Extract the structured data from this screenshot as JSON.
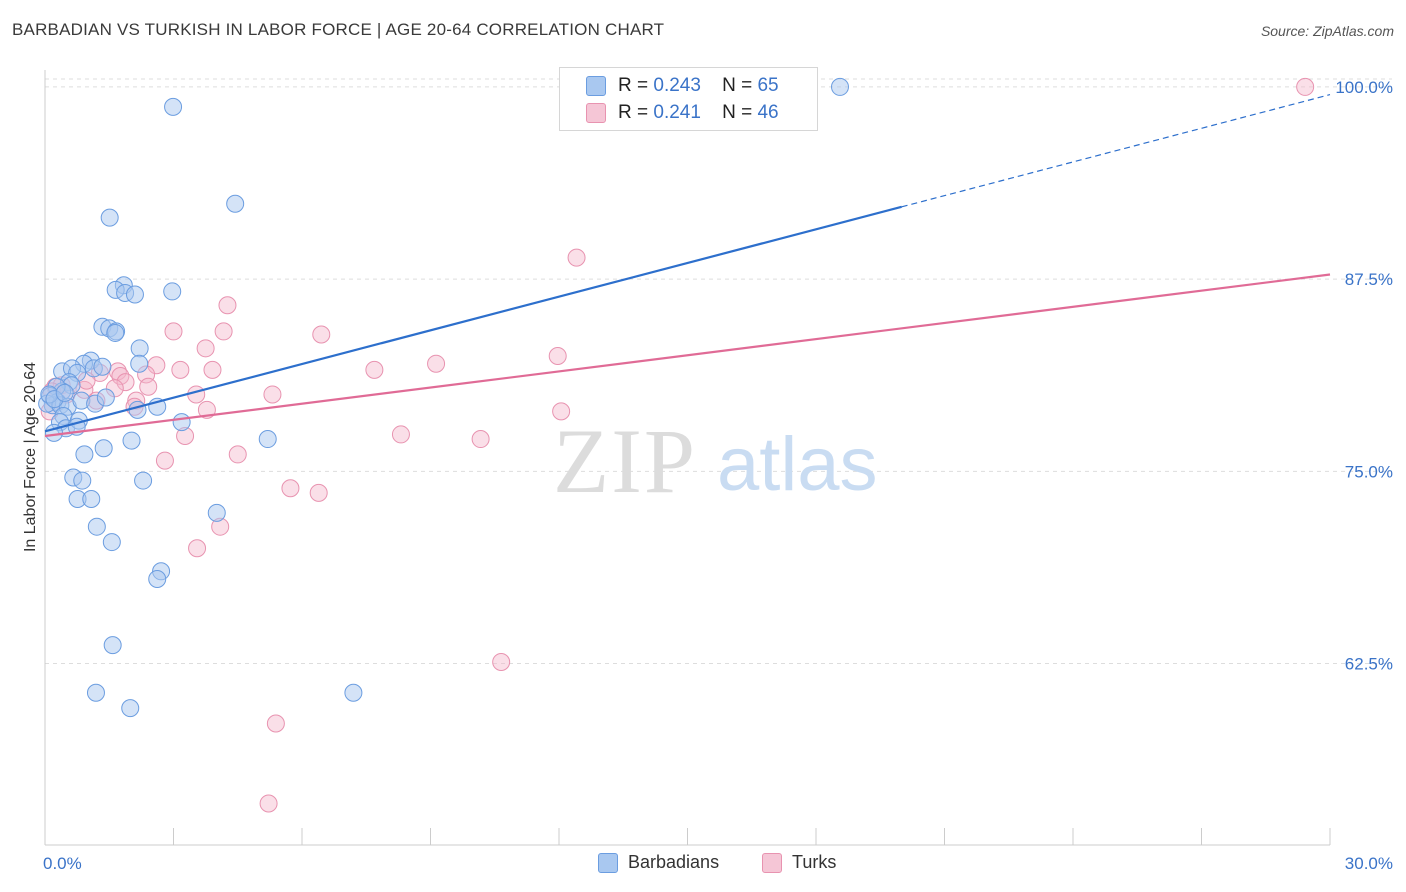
{
  "title": "BARBADIAN VS TURKISH IN LABOR FORCE | AGE 20-64 CORRELATION CHART",
  "source": "Source: ZipAtlas.com",
  "watermark": {
    "zip": "ZIP",
    "atlas": "atlas"
  },
  "legend": {
    "rows": [
      {
        "r_label": "R =",
        "r_value": "0.243",
        "n_label": "N =",
        "n_value": "65"
      },
      {
        "r_label": "R =",
        "r_value": "0.241",
        "n_label": "N =",
        "n_value": "46"
      }
    ]
  },
  "bottom_legend": {
    "series1": "Barbadians",
    "series2": "Turks"
  },
  "colors": {
    "blue_fill": "#a9c8f0",
    "blue_stroke": "#6b9de0",
    "blue_line": "#2d6fcc",
    "pink_fill": "#f5b8cc",
    "pink_stroke": "#e893b0",
    "pink_line": "#e06b96",
    "tick_label": "#3a73c8",
    "grid": "#dddddd"
  },
  "chart_data": {
    "type": "scatter",
    "title": "BARBADIAN VS TURKISH IN LABOR FORCE | AGE 20-64 CORRELATION CHART",
    "xlabel": "",
    "ylabel": "In Labor Force | Age 20-64",
    "xlim": [
      0,
      30
    ],
    "ylim": [
      50.7,
      101.1
    ],
    "x_tick_labels": [
      "0.0%",
      "30.0%"
    ],
    "y_ticks": [
      62.5,
      75.0,
      87.5,
      100.0
    ],
    "y_tick_labels": [
      "62.5%",
      "75.0%",
      "87.5%",
      "100.0%"
    ],
    "grid": true,
    "legend_position": "top-center",
    "series": [
      {
        "name": "Barbadians",
        "color": "#a9c8f0",
        "trend": {
          "x": [
            0,
            20
          ],
          "y": [
            77.6,
            92.2
          ],
          "dashed_to": [
            30,
            99.5
          ]
        },
        "points": [
          [
            2.99,
            98.7
          ],
          [
            18.56,
            100.0
          ],
          [
            4.44,
            92.4
          ],
          [
            1.51,
            91.5
          ],
          [
            2.97,
            86.7
          ],
          [
            1.84,
            87.1
          ],
          [
            1.65,
            86.8
          ],
          [
            1.87,
            86.6
          ],
          [
            2.1,
            86.5
          ],
          [
            1.34,
            84.4
          ],
          [
            1.5,
            84.3
          ],
          [
            1.66,
            84.1
          ],
          [
            1.64,
            84.0
          ],
          [
            2.21,
            83.0
          ],
          [
            2.2,
            82.0
          ],
          [
            1.07,
            82.2
          ],
          [
            0.91,
            82.0
          ],
          [
            0.4,
            81.5
          ],
          [
            0.63,
            81.7
          ],
          [
            0.75,
            81.4
          ],
          [
            1.14,
            81.7
          ],
          [
            1.34,
            81.8
          ],
          [
            0.56,
            80.8
          ],
          [
            0.62,
            80.6
          ],
          [
            0.4,
            80.2
          ],
          [
            0.27,
            80.5
          ],
          [
            0.12,
            79.9
          ],
          [
            0.29,
            79.5
          ],
          [
            0.18,
            79.3
          ],
          [
            0.05,
            79.4
          ],
          [
            0.36,
            79.3
          ],
          [
            0.53,
            79.2
          ],
          [
            0.85,
            79.6
          ],
          [
            1.17,
            79.4
          ],
          [
            1.42,
            79.8
          ],
          [
            2.16,
            79.0
          ],
          [
            2.62,
            79.2
          ],
          [
            0.43,
            78.6
          ],
          [
            0.35,
            78.2
          ],
          [
            0.49,
            77.8
          ],
          [
            0.79,
            78.3
          ],
          [
            0.21,
            77.5
          ],
          [
            0.74,
            77.9
          ],
          [
            3.19,
            78.2
          ],
          [
            2.02,
            77.0
          ],
          [
            1.37,
            76.5
          ],
          [
            0.92,
            76.1
          ],
          [
            5.2,
            77.1
          ],
          [
            0.66,
            74.6
          ],
          [
            0.87,
            74.4
          ],
          [
            2.29,
            74.4
          ],
          [
            0.76,
            73.2
          ],
          [
            1.08,
            73.2
          ],
          [
            4.01,
            72.3
          ],
          [
            1.21,
            71.4
          ],
          [
            1.56,
            70.4
          ],
          [
            2.71,
            68.5
          ],
          [
            2.62,
            68.0
          ],
          [
            1.58,
            63.7
          ],
          [
            1.19,
            60.6
          ],
          [
            1.99,
            59.6
          ],
          [
            7.2,
            60.6
          ],
          [
            0.1,
            80.0
          ],
          [
            0.22,
            79.7
          ],
          [
            0.46,
            80.1
          ]
        ]
      },
      {
        "name": "Turks",
        "color": "#f5b8cc",
        "trend": {
          "x": [
            0,
            30
          ],
          "y": [
            77.3,
            87.8
          ]
        },
        "points": [
          [
            29.42,
            100.0
          ],
          [
            12.41,
            88.9
          ],
          [
            4.26,
            85.8
          ],
          [
            3.0,
            84.1
          ],
          [
            4.17,
            84.1
          ],
          [
            6.45,
            83.9
          ],
          [
            3.75,
            83.0
          ],
          [
            11.97,
            82.5
          ],
          [
            9.13,
            82.0
          ],
          [
            2.6,
            81.9
          ],
          [
            3.16,
            81.6
          ],
          [
            3.91,
            81.6
          ],
          [
            7.69,
            81.6
          ],
          [
            1.7,
            81.5
          ],
          [
            1.28,
            81.4
          ],
          [
            2.36,
            81.3
          ],
          [
            1.76,
            81.2
          ],
          [
            1.88,
            80.8
          ],
          [
            2.41,
            80.5
          ],
          [
            1.63,
            80.4
          ],
          [
            0.24,
            80.5
          ],
          [
            0.39,
            80.6
          ],
          [
            0.5,
            80.0
          ],
          [
            0.92,
            80.3
          ],
          [
            0.97,
            80.9
          ],
          [
            3.53,
            80.0
          ],
          [
            5.31,
            80.0
          ],
          [
            2.13,
            79.6
          ],
          [
            1.2,
            79.6
          ],
          [
            2.09,
            79.2
          ],
          [
            3.78,
            79.0
          ],
          [
            12.05,
            78.9
          ],
          [
            0.11,
            78.9
          ],
          [
            8.31,
            77.4
          ],
          [
            10.17,
            77.1
          ],
          [
            3.27,
            77.3
          ],
          [
            4.5,
            76.1
          ],
          [
            2.8,
            75.7
          ],
          [
            5.73,
            73.9
          ],
          [
            6.39,
            73.6
          ],
          [
            4.09,
            71.4
          ],
          [
            3.55,
            70.0
          ],
          [
            10.65,
            62.6
          ],
          [
            5.39,
            58.6
          ],
          [
            5.22,
            53.4
          ],
          [
            0.16,
            80.2
          ]
        ]
      }
    ]
  }
}
